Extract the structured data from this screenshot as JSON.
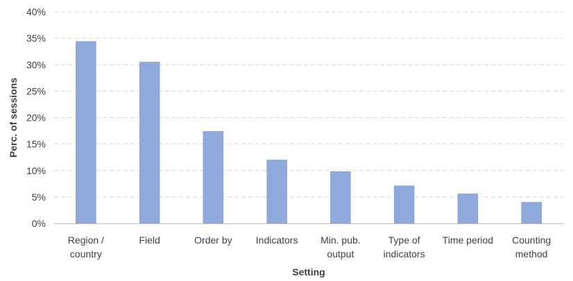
{
  "chart_data": {
    "type": "bar",
    "categories": [
      [
        "Region /",
        "country"
      ],
      [
        "Field"
      ],
      [
        "Order by"
      ],
      [
        "Indicators"
      ],
      [
        "Min. pub.",
        "output"
      ],
      [
        "Type of",
        "indicators"
      ],
      [
        "Time period"
      ],
      [
        "Counting",
        "method"
      ]
    ],
    "values": [
      34.4,
      30.5,
      17.4,
      12.0,
      9.8,
      7.1,
      5.6,
      4.0
    ],
    "ylim": [
      0,
      40
    ],
    "yticks": [
      0,
      5,
      10,
      15,
      20,
      25,
      30,
      35,
      40
    ],
    "ytick_labels": [
      "0%",
      "5%",
      "10%",
      "15%",
      "20%",
      "25%",
      "30%",
      "35%",
      "40%"
    ],
    "xlabel": "Setting",
    "ylabel": "Perc. of sessions",
    "title": "",
    "grid": true,
    "colors": {
      "bar_fill": "#8EA9DB",
      "bar_stroke": "#7F9ACC",
      "grid": "#D9D9D9",
      "axis": "#BFBFBF",
      "text": "#404040"
    }
  }
}
